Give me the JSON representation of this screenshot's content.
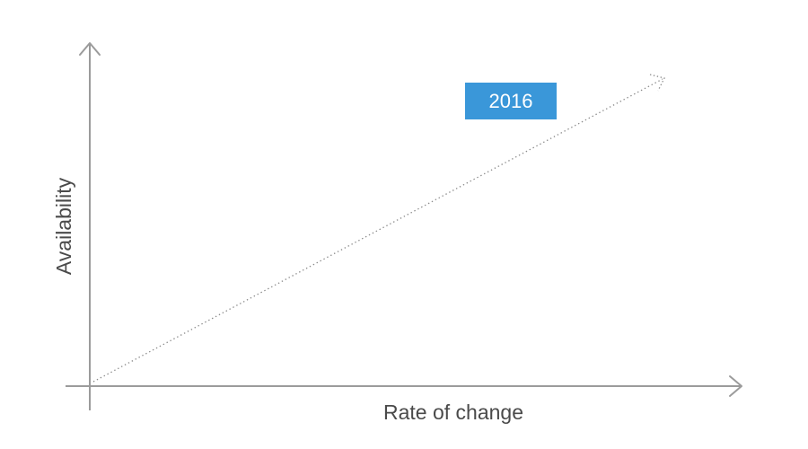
{
  "axes": {
    "x_label": "Rate of change",
    "y_label": "Availability"
  },
  "trend": {
    "label": "2016",
    "label_color": "#3a97d9",
    "direction": "rising"
  },
  "colors": {
    "axis": "#9b9b9b",
    "text": "#4a4a4a",
    "trend_line": "#8a8a8a"
  }
}
